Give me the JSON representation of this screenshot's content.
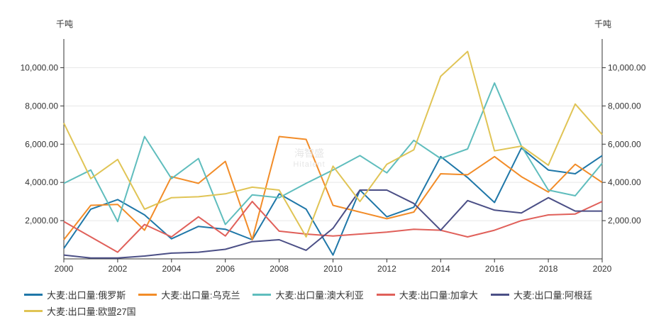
{
  "chart_data": {
    "type": "line",
    "left_unit": "千吨",
    "right_unit": "千吨",
    "x": [
      2000,
      2001,
      2002,
      2003,
      2004,
      2005,
      2006,
      2007,
      2008,
      2009,
      2010,
      2011,
      2012,
      2013,
      2014,
      2015,
      2016,
      2017,
      2018,
      2019,
      2020
    ],
    "x_ticks": [
      "2000",
      "2002",
      "2004",
      "2006",
      "2008",
      "2010",
      "2012",
      "2014",
      "2016",
      "2018",
      "2020"
    ],
    "y_ticks": [
      "2,000.00",
      "4,000.00",
      "6,000.00",
      "8,000.00",
      "10,000.00"
    ],
    "y_tick_values": [
      2000,
      4000,
      6000,
      8000,
      10000
    ],
    "ylim": [
      0,
      11500
    ],
    "grid": true,
    "series": [
      {
        "name": "大麦:出口量:俄罗斯",
        "color": "#1f77a8",
        "values": [
          550,
          2600,
          3100,
          2300,
          1050,
          1700,
          1550,
          1000,
          3400,
          2600,
          200,
          3600,
          2200,
          2700,
          5350,
          4250,
          2950,
          5800,
          4650,
          4450,
          5400
        ]
      },
      {
        "name": "大麦:出口量:乌克兰",
        "color": "#f28c28",
        "values": [
          1000,
          2800,
          2850,
          1500,
          4300,
          3950,
          5100,
          1000,
          6400,
          6250,
          2800,
          2450,
          2100,
          2450,
          4450,
          4400,
          5350,
          4300,
          3500,
          4950,
          4000
        ]
      },
      {
        "name": "大麦:出口量:澳大利亚",
        "color": "#5fbdbd",
        "values": [
          3950,
          4650,
          1950,
          6400,
          4200,
          5250,
          1800,
          3350,
          3200,
          3950,
          4650,
          5400,
          4500,
          6200,
          5250,
          5750,
          9200,
          5900,
          3600,
          3300,
          5000
        ]
      },
      {
        "name": "大麦:出口量:加拿大",
        "color": "#e0605a",
        "values": [
          1950,
          1150,
          350,
          1800,
          1150,
          2200,
          1200,
          3000,
          1450,
          1300,
          1200,
          1300,
          1400,
          1550,
          1500,
          1150,
          1500,
          2000,
          2300,
          2350,
          3000
        ]
      },
      {
        "name": "大麦:出口量:阿根廷",
        "color": "#4b4f86",
        "values": [
          200,
          50,
          50,
          150,
          300,
          350,
          500,
          900,
          1000,
          450,
          1600,
          3600,
          3600,
          2900,
          1500,
          3050,
          2550,
          2400,
          3200,
          2500,
          2500
        ]
      },
      {
        "name": "大麦:出口量:欧盟27国",
        "color": "#e0c455",
        "values": [
          7100,
          4200,
          5200,
          2600,
          3200,
          3250,
          3400,
          3750,
          3600,
          1150,
          4850,
          3000,
          4950,
          5700,
          9550,
          10850,
          5650,
          5900,
          4900,
          8100,
          6500
        ]
      }
    ]
  },
  "watermark": {
    "line1": "海智盛",
    "line2": "Hitalent"
  }
}
